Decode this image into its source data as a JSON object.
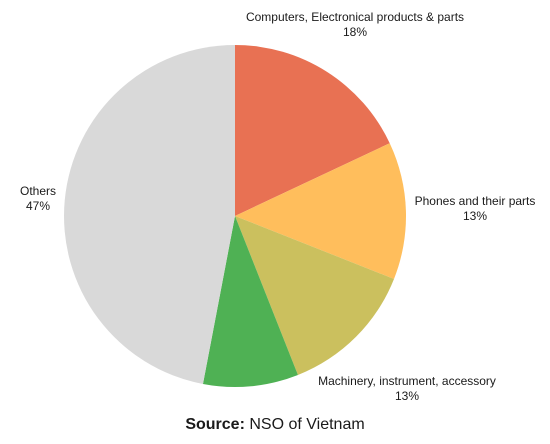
{
  "chart_data": {
    "type": "pie",
    "title": "",
    "start_angle_deg": 0,
    "direction": "clockwise",
    "slices": [
      {
        "label": "Computers, Electronical products & parts",
        "value": 18,
        "value_label": "18%",
        "color": "#e87153"
      },
      {
        "label": "Phones and their parts",
        "value": 13,
        "value_label": "13%",
        "color": "#ffbe5c"
      },
      {
        "label": "Machinery, instrument, accessory",
        "value": 13,
        "value_label": "13%",
        "color": "#cbc05e"
      },
      {
        "label": "",
        "value": 9,
        "value_label": "",
        "color": "#4fb154"
      },
      {
        "label": "Others",
        "value": 47,
        "value_label": "47%",
        "color": "#d9d9d9"
      }
    ]
  },
  "source": {
    "prefix": "Source:",
    "text": " NSO of Vietnam"
  }
}
